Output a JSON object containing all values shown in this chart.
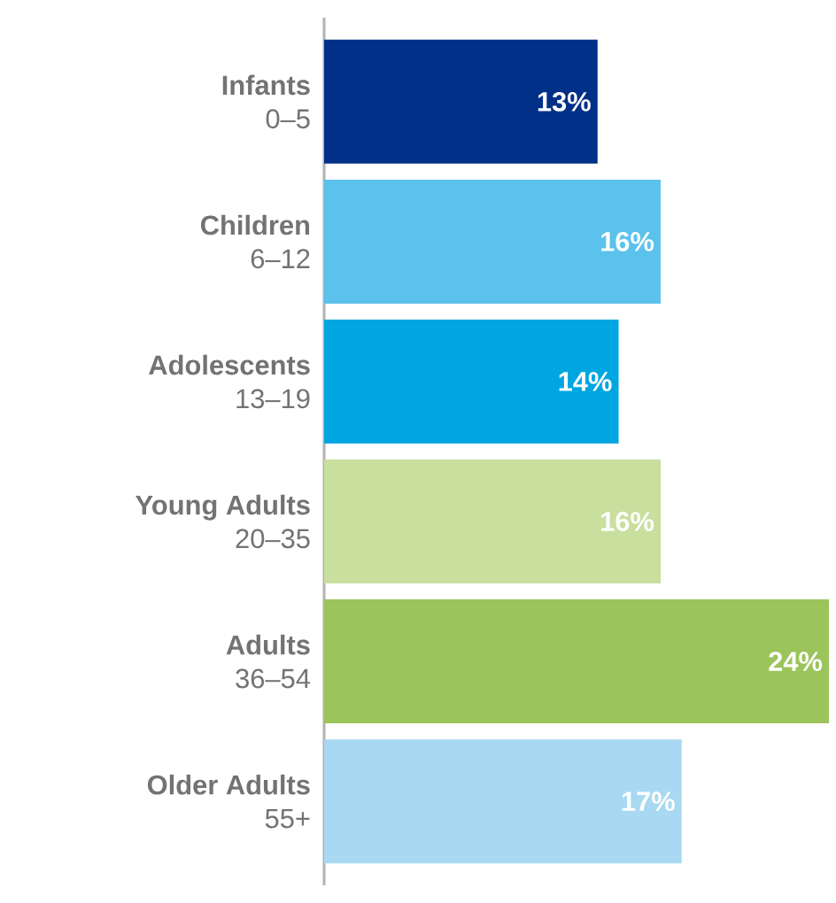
{
  "chart_data": {
    "type": "bar",
    "orientation": "horizontal",
    "categories": [
      "**Infants**\n0–5",
      "**Children**\n6–12",
      "**Adolescents**\n13–19",
      "**Young Adults**\n20–35",
      "**Adults**\n36–54",
      "**Older Adults**\n55+"
    ],
    "values": [
      13,
      16,
      14,
      16,
      24,
      17
    ],
    "value_labels": [
      "13%",
      "16%",
      "14%",
      "16%",
      "24%",
      "17%"
    ],
    "colors": [
      "#003087",
      "#5bc2ec",
      "#00a6e0",
      "#c8df9e",
      "#9bc45a",
      "#a9d9f2"
    ]
  }
}
